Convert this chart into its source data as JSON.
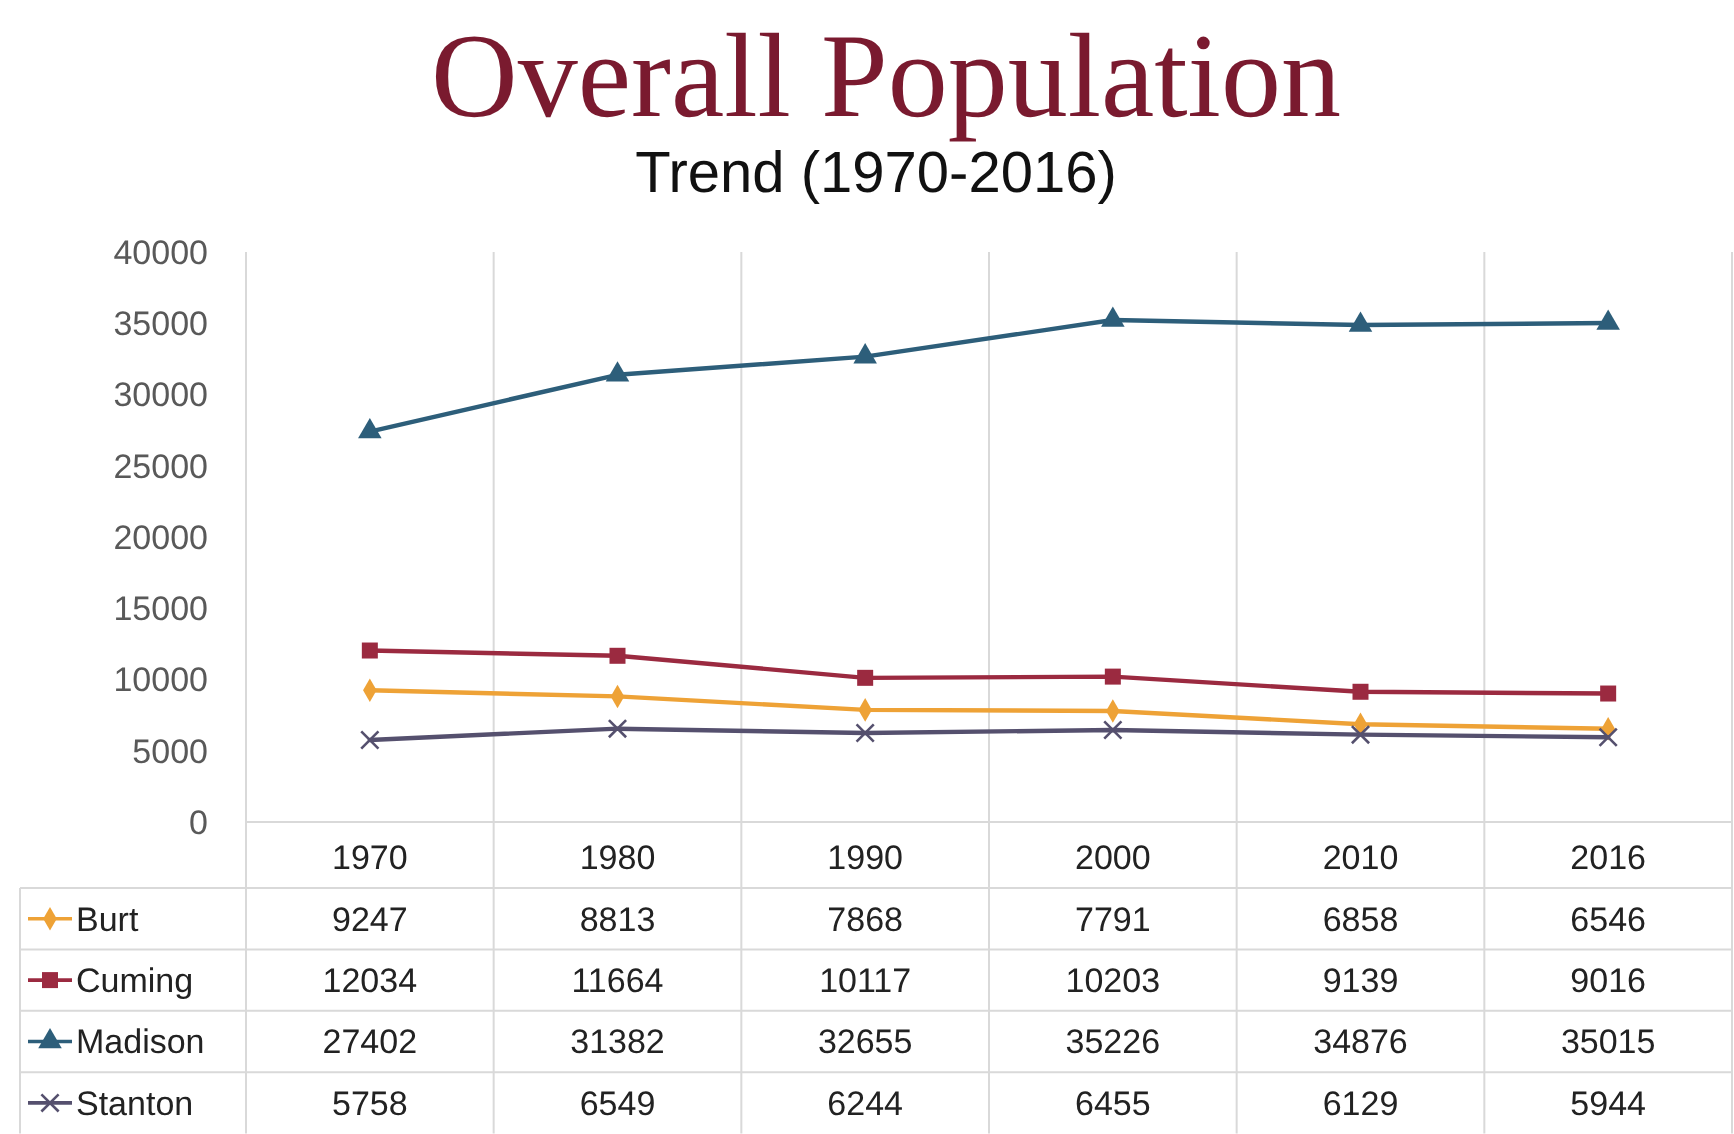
{
  "chart_data": {
    "type": "line",
    "title": "Overall Population",
    "subtitle": "Trend (1970-2016)",
    "categories": [
      "1970",
      "1980",
      "1990",
      "2000",
      "2010",
      "2016"
    ],
    "series": [
      {
        "name": "Burt",
        "color": "#eea236",
        "marker": "diamond",
        "values": [
          9247,
          8813,
          7868,
          7791,
          6858,
          6546
        ]
      },
      {
        "name": "Cuming",
        "color": "#9b2a40",
        "marker": "square",
        "values": [
          12034,
          11664,
          10117,
          10203,
          9139,
          9016
        ]
      },
      {
        "name": "Madison",
        "color": "#2d5e7a",
        "marker": "triangle",
        "values": [
          27402,
          31382,
          32655,
          35226,
          34876,
          35015
        ]
      },
      {
        "name": "Stanton",
        "color": "#55506e",
        "marker": "cross",
        "values": [
          5758,
          6549,
          6244,
          6455,
          6129,
          5944
        ]
      }
    ],
    "ylim": [
      0,
      40000
    ],
    "yticks": [
      0,
      5000,
      10000,
      15000,
      20000,
      25000,
      30000,
      35000,
      40000
    ],
    "grid": "x",
    "legend": "bottom",
    "data_labels": true
  }
}
